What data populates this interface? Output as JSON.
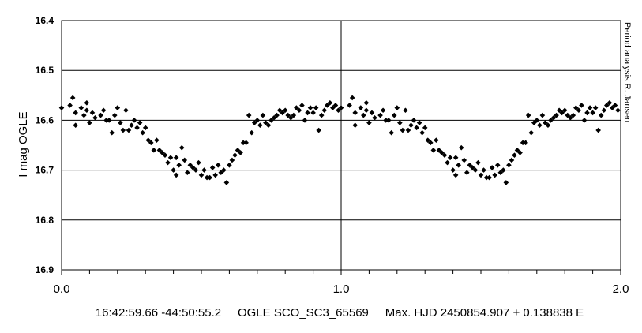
{
  "chart_data": {
    "type": "scatter",
    "title": "",
    "xlabel": "",
    "ylabel": "I mag OGLE",
    "xlim": [
      0.0,
      2.0
    ],
    "ylim": [
      16.4,
      16.9
    ],
    "y_inverted": true,
    "x_ticks": [
      "0.0",
      "1.0",
      "2.0"
    ],
    "x_minor_step": 0.1,
    "y_ticks": [
      "16.4",
      "16.5",
      "16.6",
      "16.7",
      "16.8",
      "16.9"
    ],
    "y_tick_values": [
      16.4,
      16.5,
      16.6,
      16.7,
      16.8,
      16.9
    ],
    "grid": "horizontal major lines plus vertical line at x=1.0",
    "marker": "diamond",
    "marker_color": "#000000",
    "side_note": "Period analysis R. Jansen",
    "caption": "16:42:59.66 -44:50:55.2     OGLE SCO_SC3_65569     Max. HJD 2450854.907 + 0.138838 E",
    "points_phase": [
      [
        0.0,
        16.575
      ],
      [
        0.03,
        16.57
      ],
      [
        0.04,
        16.555
      ],
      [
        0.05,
        16.585
      ],
      [
        0.05,
        16.61
      ],
      [
        0.07,
        16.575
      ],
      [
        0.08,
        16.59
      ],
      [
        0.09,
        16.58
      ],
      [
        0.09,
        16.565
      ],
      [
        0.1,
        16.605
      ],
      [
        0.11,
        16.585
      ],
      [
        0.12,
        16.595
      ],
      [
        0.14,
        16.59
      ],
      [
        0.15,
        16.58
      ],
      [
        0.16,
        16.6
      ],
      [
        0.17,
        16.6
      ],
      [
        0.18,
        16.625
      ],
      [
        0.19,
        16.59
      ],
      [
        0.2,
        16.575
      ],
      [
        0.21,
        16.605
      ],
      [
        0.22,
        16.62
      ],
      [
        0.23,
        16.58
      ],
      [
        0.24,
        16.62
      ],
      [
        0.25,
        16.61
      ],
      [
        0.26,
        16.6
      ],
      [
        0.27,
        16.615
      ],
      [
        0.28,
        16.605
      ],
      [
        0.29,
        16.625
      ],
      [
        0.3,
        16.615
      ],
      [
        0.31,
        16.64
      ],
      [
        0.32,
        16.645
      ],
      [
        0.33,
        16.66
      ],
      [
        0.34,
        16.64
      ],
      [
        0.35,
        16.66
      ],
      [
        0.36,
        16.665
      ],
      [
        0.37,
        16.67
      ],
      [
        0.38,
        16.685
      ],
      [
        0.39,
        16.675
      ],
      [
        0.4,
        16.7
      ],
      [
        0.41,
        16.675
      ],
      [
        0.41,
        16.71
      ],
      [
        0.42,
        16.69
      ],
      [
        0.43,
        16.655
      ],
      [
        0.44,
        16.68
      ],
      [
        0.45,
        16.705
      ],
      [
        0.46,
        16.69
      ],
      [
        0.47,
        16.695
      ],
      [
        0.48,
        16.7
      ],
      [
        0.49,
        16.685
      ],
      [
        0.5,
        16.71
      ],
      [
        0.51,
        16.7
      ],
      [
        0.52,
        16.715
      ],
      [
        0.53,
        16.715
      ],
      [
        0.54,
        16.695
      ],
      [
        0.55,
        16.71
      ],
      [
        0.56,
        16.69
      ],
      [
        0.57,
        16.705
      ],
      [
        0.58,
        16.7
      ],
      [
        0.59,
        16.725
      ],
      [
        0.6,
        16.69
      ],
      [
        0.61,
        16.68
      ],
      [
        0.62,
        16.67
      ],
      [
        0.63,
        16.66
      ],
      [
        0.64,
        16.665
      ],
      [
        0.65,
        16.645
      ],
      [
        0.66,
        16.645
      ],
      [
        0.67,
        16.59
      ],
      [
        0.68,
        16.625
      ],
      [
        0.69,
        16.605
      ],
      [
        0.7,
        16.6
      ],
      [
        0.71,
        16.61
      ],
      [
        0.72,
        16.59
      ],
      [
        0.73,
        16.605
      ],
      [
        0.74,
        16.61
      ],
      [
        0.75,
        16.6
      ],
      [
        0.76,
        16.595
      ],
      [
        0.77,
        16.59
      ],
      [
        0.78,
        16.58
      ],
      [
        0.79,
        16.585
      ],
      [
        0.8,
        16.58
      ],
      [
        0.81,
        16.59
      ],
      [
        0.82,
        16.595
      ],
      [
        0.83,
        16.59
      ],
      [
        0.84,
        16.575
      ],
      [
        0.85,
        16.58
      ],
      [
        0.86,
        16.57
      ],
      [
        0.87,
        16.6
      ],
      [
        0.88,
        16.585
      ],
      [
        0.89,
        16.575
      ],
      [
        0.9,
        16.585
      ],
      [
        0.91,
        16.575
      ],
      [
        0.92,
        16.62
      ],
      [
        0.93,
        16.59
      ],
      [
        0.94,
        16.58
      ],
      [
        0.95,
        16.57
      ],
      [
        0.96,
        16.565
      ],
      [
        0.97,
        16.575
      ],
      [
        0.98,
        16.57
      ],
      [
        0.99,
        16.58
      ]
    ]
  }
}
